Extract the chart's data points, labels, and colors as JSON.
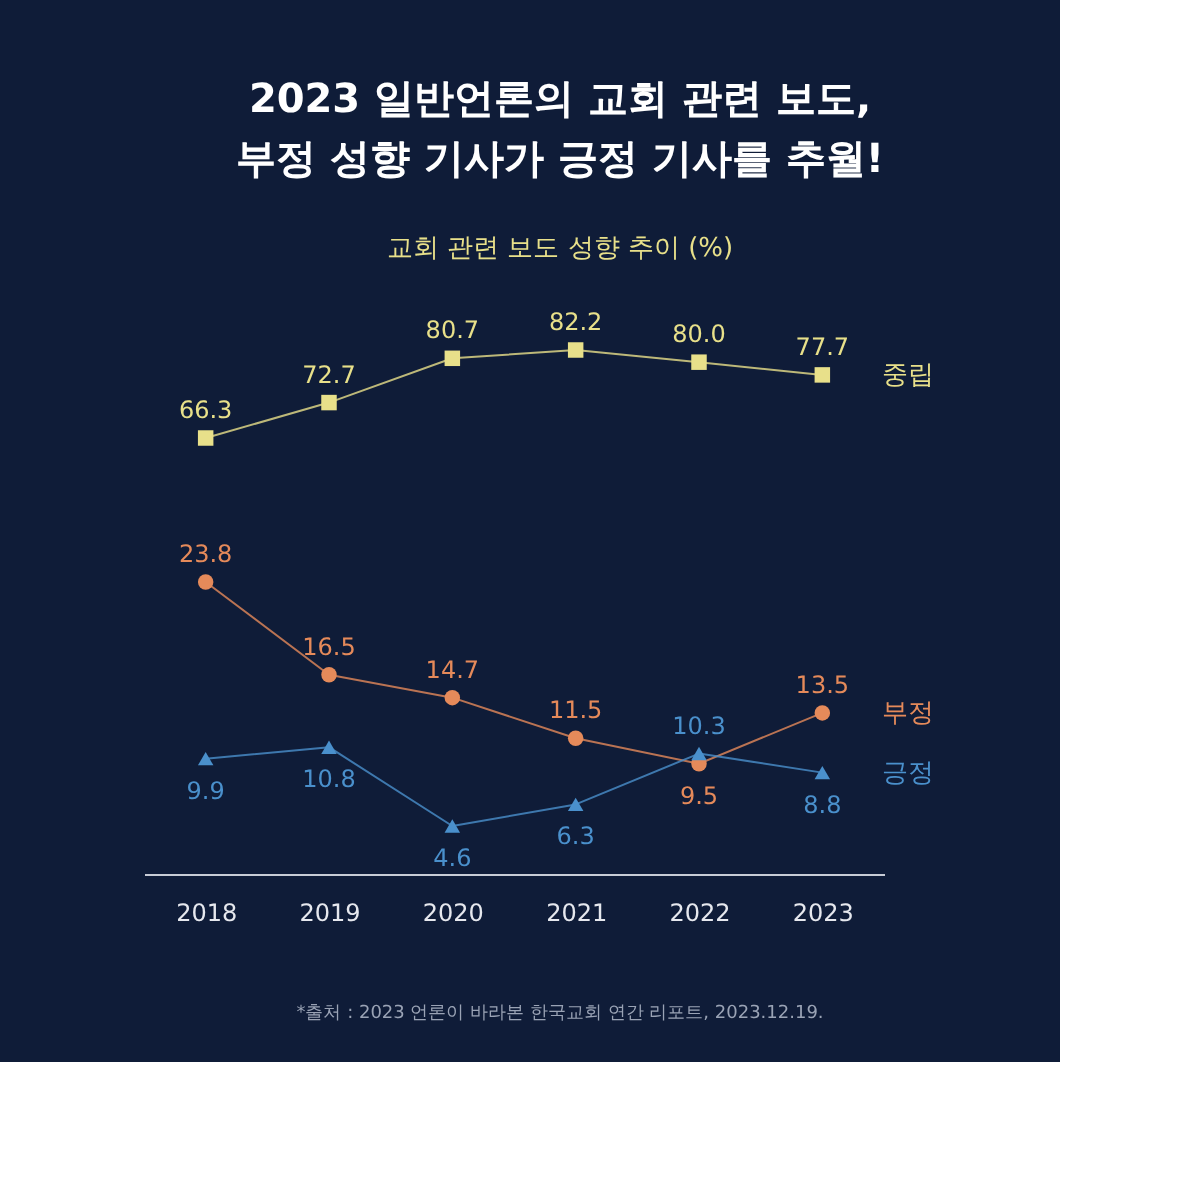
{
  "chart_data": [
    {
      "type": "line",
      "title": [
        "2023 일반언론의 교회 관련 보도,",
        "부정 성향 기사가 긍정 기사를 추월!"
      ],
      "subtitle": "교회 관련 보도 성향 추이 (%)",
      "categories": [
        "2018",
        "2019",
        "2020",
        "2021",
        "2022",
        "2023"
      ],
      "tick_labels": false,
      "data_labels": true,
      "grid": false,
      "series": [
        {
          "name": "중립",
          "color": "#e8e08a",
          "marker": "square",
          "values": [
            66.3,
            72.7,
            80.7,
            82.2,
            80.0,
            77.7
          ],
          "value_labels": [
            "66.3",
            "72.7",
            "80.7",
            "82.2",
            "80.0",
            "77.7"
          ]
        }
      ]
    },
    {
      "type": "line",
      "categories": [
        "2018",
        "2019",
        "2020",
        "2021",
        "2022",
        "2023"
      ],
      "tick_labels": "x",
      "data_labels": true,
      "grid": false,
      "annotations": [
        "*출처 : 2023 언론이 바라본 한국교회 연간 리포트, 2023.12.19."
      ],
      "series": [
        {
          "name": "부정",
          "color": "#e58a5a",
          "marker": "circle",
          "values": [
            23.8,
            16.5,
            14.7,
            11.5,
            9.5,
            13.5
          ]
        },
        {
          "name": "긍정",
          "color": "#4a90cc",
          "marker": "triangle",
          "values": [
            9.9,
            10.8,
            4.6,
            6.3,
            10.3,
            8.8
          ]
        }
      ]
    }
  ]
}
